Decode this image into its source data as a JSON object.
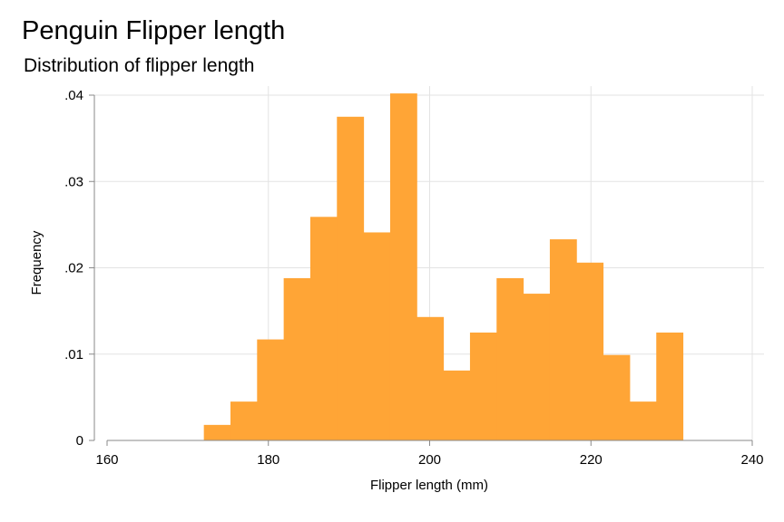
{
  "chart_data": {
    "type": "bar",
    "subtype": "histogram",
    "title": "Penguin Flipper length",
    "subtitle": "Distribution of flipper length",
    "xlabel": "Flipper length (mm)",
    "ylabel": "Frequency",
    "xlim": [
      160,
      240
    ],
    "ylim": [
      0,
      0.04
    ],
    "x_ticks": [
      160,
      180,
      200,
      220,
      240
    ],
    "x_tick_labels": [
      "160",
      "180",
      "200",
      "220",
      "240"
    ],
    "y_ticks": [
      0,
      0.01,
      0.02,
      0.03,
      0.04
    ],
    "y_tick_labels": [
      "0",
      ".01",
      ".02",
      ".03",
      ".04"
    ],
    "grid": true,
    "bar_color": "#FFA536",
    "bins": [
      {
        "start": 172.0,
        "end": 175.3,
        "value": 0.0018
      },
      {
        "start": 175.3,
        "end": 178.6,
        "value": 0.0045
      },
      {
        "start": 178.6,
        "end": 181.9,
        "value": 0.0117
      },
      {
        "start": 181.9,
        "end": 185.2,
        "value": 0.0188
      },
      {
        "start": 185.2,
        "end": 188.5,
        "value": 0.0259
      },
      {
        "start": 188.5,
        "end": 191.8,
        "value": 0.0375
      },
      {
        "start": 191.8,
        "end": 195.1,
        "value": 0.0241
      },
      {
        "start": 195.1,
        "end": 198.4,
        "value": 0.0402
      },
      {
        "start": 198.4,
        "end": 201.7,
        "value": 0.0143
      },
      {
        "start": 201.7,
        "end": 205.0,
        "value": 0.0081
      },
      {
        "start": 205.0,
        "end": 208.3,
        "value": 0.0125
      },
      {
        "start": 208.3,
        "end": 211.6,
        "value": 0.0188
      },
      {
        "start": 211.6,
        "end": 214.9,
        "value": 0.017
      },
      {
        "start": 214.9,
        "end": 218.2,
        "value": 0.0233
      },
      {
        "start": 218.2,
        "end": 221.5,
        "value": 0.0206
      },
      {
        "start": 221.5,
        "end": 224.8,
        "value": 0.0099
      },
      {
        "start": 224.8,
        "end": 228.1,
        "value": 0.0045
      },
      {
        "start": 228.1,
        "end": 231.4,
        "value": 0.0125
      }
    ]
  }
}
